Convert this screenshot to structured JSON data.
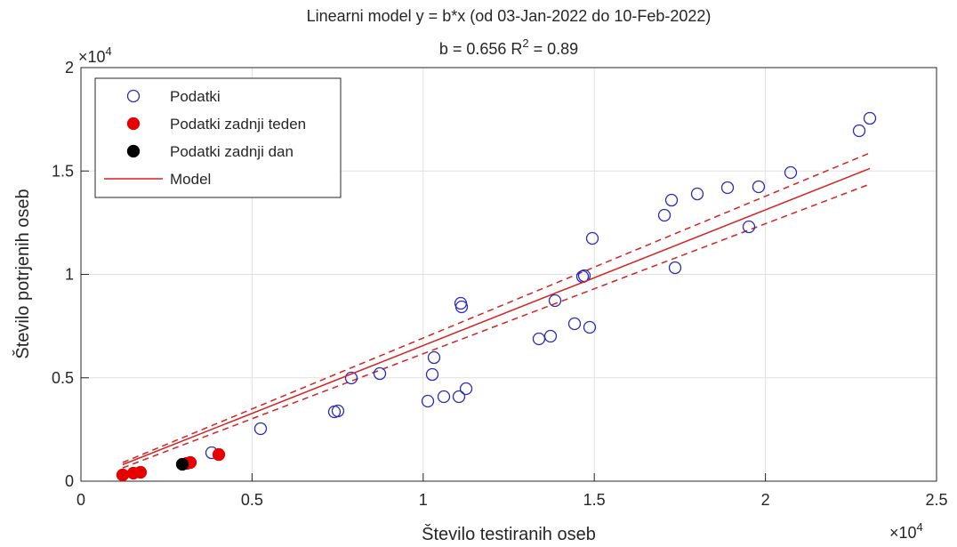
{
  "chart_data": {
    "type": "scatter",
    "title": "Linearni model y = b*x (od 03-Jan-2022 do 10-Feb-2022)",
    "subtitle": [
      "b = 0.656 R",
      "2",
      " = 0.89"
    ],
    "x_label": "Število testiranih oseb",
    "y_label": "Število potrjenih oseb",
    "x_multiplier": [
      "×10",
      "4"
    ],
    "y_multiplier": [
      "×10",
      "4"
    ],
    "xlim": [
      0,
      25000
    ],
    "ylim": [
      0,
      20000
    ],
    "xticks": [
      0,
      {
        "value": 5000,
        "label": "0.5"
      },
      {
        "value": 10000,
        "label": "1"
      },
      {
        "value": 15000,
        "label": "1.5"
      },
      {
        "value": 20000,
        "label": "2"
      },
      {
        "value": 25000,
        "label": "2.5"
      }
    ],
    "yticks": [
      0,
      {
        "value": 5000,
        "label": "0.5"
      },
      {
        "value": 10000,
        "label": "1"
      },
      {
        "value": 15000,
        "label": "1.5"
      },
      {
        "value": 20000,
        "label": "2"
      }
    ],
    "grid": true,
    "legend": "northwest",
    "series": [
      {
        "name": "Podatki",
        "color": "#2a2ab8",
        "marker": "open",
        "x": [
          23051,
          22739,
          20738,
          19802,
          19517,
          18893,
          18009,
          17256,
          17048,
          17360,
          14943,
          14709,
          14657,
          13851,
          14423,
          14865,
          13721,
          13383,
          11097,
          11123,
          10317,
          10265,
          11253,
          11045,
          10603,
          10135,
          8732,
          7900,
          7510,
          7406,
          5249,
          3820
        ],
        "values": [
          17548,
          16946,
          14925,
          14237,
          12301,
          14194,
          13892,
          13591,
          12860,
          10323,
          11742,
          9935,
          9892,
          8731,
          7613,
          7441,
          7011,
          6882,
          8602,
          8430,
          5978,
          5161,
          4473,
          4086,
          4086,
          3871,
          5204,
          4989,
          3398,
          3355,
          2538,
          1376
        ]
      },
      {
        "name": "Podatki zadnji teden",
        "color": "#e60000",
        "marker": "filled",
        "x": [
          1221,
          1533,
          1741,
          3093,
          3196,
          4028
        ],
        "values": [
          301,
          387,
          430,
          860,
          903,
          1290
        ]
      },
      {
        "name": "Podatki zadnji dan",
        "color": "#000000",
        "marker": "filled",
        "x": [
          2963
        ],
        "values": [
          817
        ]
      },
      {
        "name": "Model",
        "color": "#d92020",
        "marker": "line",
        "x": [
          1221,
          23051
        ],
        "values": [
          801,
          15121
        ]
      }
    ],
    "bounds": [
      {
        "color": "#d92020",
        "x": [
          1221,
          23051
        ],
        "values": [
          903,
          15871
        ]
      },
      {
        "color": "#d92020",
        "x": [
          1221,
          23051
        ],
        "values": [
          645,
          14366
        ]
      }
    ]
  }
}
